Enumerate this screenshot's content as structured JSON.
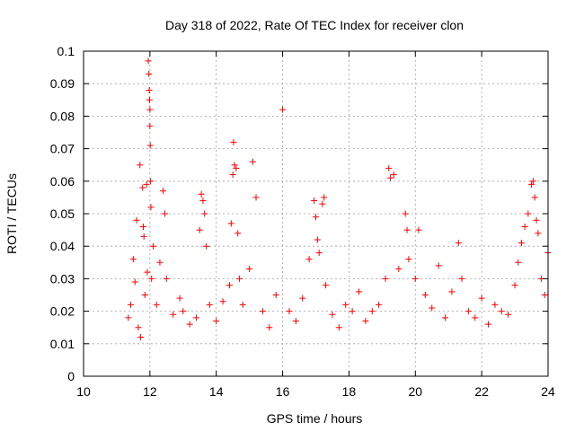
{
  "colors": {
    "marker": "#ff0000",
    "grid": "#a0a0a0",
    "axis": "#000000",
    "background": "#ffffff"
  },
  "chart_data": {
    "type": "scatter",
    "title": "Day 318 of 2022, Rate Of TEC Index for receiver clon",
    "xlabel": "GPS time / hours",
    "ylabel": "ROTI / TECUs",
    "xlim": [
      10,
      24
    ],
    "ylim": [
      0,
      0.1
    ],
    "xticks": [
      "10",
      "12",
      "14",
      "16",
      "18",
      "20",
      "22",
      "24"
    ],
    "yticks": [
      "0",
      "0.01",
      "0.02",
      "0.03",
      "0.04",
      "0.05",
      "0.06",
      "0.07",
      "0.08",
      "0.09",
      "0.1"
    ],
    "grid": true,
    "marker": "plus",
    "series": [
      {
        "x": [
          11.35,
          11.42,
          11.5,
          11.55,
          11.6,
          11.65,
          11.7,
          11.72,
          11.78,
          11.8,
          11.82,
          11.85,
          11.9,
          11.92,
          11.95,
          11.97,
          11.98,
          11.99,
          12.0,
          12.0,
          12.01,
          12.02,
          12.03,
          12.05,
          12.1,
          12.2,
          12.3,
          12.4,
          12.45,
          12.5,
          12.7,
          12.9,
          13.0,
          13.2,
          13.4,
          13.5,
          13.55,
          13.6,
          13.65,
          13.7,
          13.8,
          14.0,
          14.2,
          14.4,
          14.45,
          14.5,
          14.52,
          14.55,
          14.6,
          14.65,
          14.7,
          14.8,
          15.0,
          15.1,
          15.2,
          15.4,
          15.6,
          15.8,
          16.0,
          16.2,
          16.4,
          16.6,
          16.8,
          16.95,
          17.0,
          17.05,
          17.1,
          17.2,
          17.25,
          17.3,
          17.5,
          17.7,
          17.9,
          18.1,
          18.3,
          18.5,
          18.7,
          18.9,
          19.1,
          19.2,
          19.25,
          19.35,
          19.5,
          19.7,
          19.75,
          19.8,
          20.0,
          20.1,
          20.3,
          20.5,
          20.7,
          20.9,
          21.1,
          21.3,
          21.4,
          21.6,
          21.8,
          22.0,
          22.2,
          22.4,
          22.6,
          22.8,
          23.0,
          23.1,
          23.2,
          23.3,
          23.4,
          23.5,
          23.55,
          23.6,
          23.65,
          23.7,
          23.8,
          23.9,
          24.0
        ],
        "y": [
          0.018,
          0.022,
          0.036,
          0.029,
          0.048,
          0.015,
          0.065,
          0.012,
          0.058,
          0.046,
          0.043,
          0.025,
          0.059,
          0.032,
          0.097,
          0.093,
          0.088,
          0.085,
          0.082,
          0.077,
          0.071,
          0.06,
          0.052,
          0.03,
          0.04,
          0.022,
          0.035,
          0.057,
          0.05,
          0.03,
          0.019,
          0.024,
          0.02,
          0.016,
          0.018,
          0.045,
          0.056,
          0.054,
          0.05,
          0.04,
          0.022,
          0.017,
          0.023,
          0.028,
          0.047,
          0.062,
          0.072,
          0.065,
          0.064,
          0.044,
          0.03,
          0.022,
          0.033,
          0.066,
          0.055,
          0.02,
          0.015,
          0.025,
          0.082,
          0.02,
          0.017,
          0.024,
          0.036,
          0.054,
          0.049,
          0.042,
          0.038,
          0.053,
          0.055,
          0.028,
          0.019,
          0.015,
          0.022,
          0.02,
          0.026,
          0.017,
          0.02,
          0.022,
          0.03,
          0.064,
          0.061,
          0.062,
          0.033,
          0.05,
          0.045,
          0.036,
          0.03,
          0.045,
          0.025,
          0.021,
          0.034,
          0.018,
          0.026,
          0.041,
          0.03,
          0.02,
          0.018,
          0.024,
          0.016,
          0.022,
          0.02,
          0.019,
          0.028,
          0.035,
          0.041,
          0.046,
          0.05,
          0.059,
          0.06,
          0.055,
          0.048,
          0.044,
          0.03,
          0.025,
          0.038
        ]
      }
    ]
  }
}
